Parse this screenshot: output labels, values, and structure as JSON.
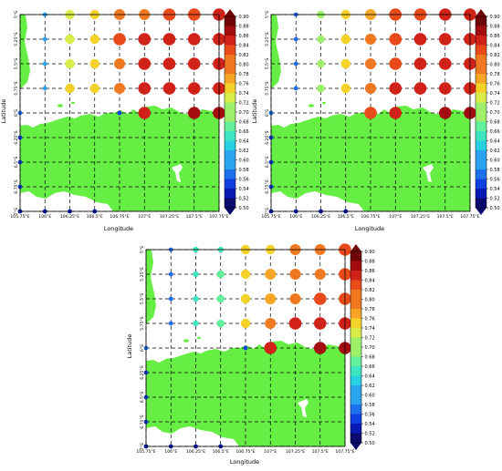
{
  "figure_colors": {
    "land": "#66ee44",
    "sea": "#ffffff",
    "grid_line": "#000000",
    "colormap": [
      "#0b0b6e",
      "#0a1ab5",
      "#1040e0",
      "#1f70ec",
      "#2aa4ee",
      "#28d0e2",
      "#3de6c0",
      "#63f09a",
      "#9ef06a",
      "#d8ec4a",
      "#f5d22a",
      "#f6a524",
      "#f07820",
      "#e84a1a",
      "#d02218",
      "#a30d10",
      "#6e0608"
    ]
  },
  "chart_data": [
    {
      "type": "scatter",
      "title": "",
      "xlabel": "Longitude",
      "ylabel": "Latitude",
      "x_ticks": [
        "105.75°E",
        "106°E",
        "106.25°E",
        "106.5°E",
        "106.75°E",
        "107°E",
        "107.25°E",
        "107.5°E",
        "107.75°E"
      ],
      "y_ticks": [
        "5°S",
        "5.25°S",
        "5.5°S",
        "5.75°S",
        "6°S",
        "6.25°S",
        "6.5°S",
        "6.75°S",
        "7°S"
      ],
      "xlim": [
        105.75,
        107.75
      ],
      "ylim": [
        -7.0,
        -5.0
      ],
      "colorbar_ticks": [
        "0.90",
        "0.88",
        "0.86",
        "0.84",
        "0.82",
        "0.80",
        "0.78",
        "0.76",
        "0.74",
        "0.72",
        "0.70",
        "0.68",
        "0.66",
        "0.64",
        "0.62",
        "0.60",
        "0.58",
        "0.56",
        "0.54",
        "0.52",
        "0.50"
      ],
      "colorbar_range": [
        0.5,
        0.9
      ],
      "points": [
        {
          "x": 106.0,
          "y": -5.0,
          "v": 0.6
        },
        {
          "x": 106.25,
          "y": -5.0,
          "v": 0.72
        },
        {
          "x": 106.5,
          "y": -5.0,
          "v": 0.76
        },
        {
          "x": 106.75,
          "y": -5.0,
          "v": 0.8
        },
        {
          "x": 107.0,
          "y": -5.0,
          "v": 0.8
        },
        {
          "x": 107.25,
          "y": -5.0,
          "v": 0.82
        },
        {
          "x": 107.5,
          "y": -5.0,
          "v": 0.82
        },
        {
          "x": 107.75,
          "y": -5.0,
          "v": 0.84
        },
        {
          "x": 106.0,
          "y": -5.25,
          "v": 0.6
        },
        {
          "x": 106.25,
          "y": -5.25,
          "v": 0.72
        },
        {
          "x": 106.5,
          "y": -5.25,
          "v": 0.76
        },
        {
          "x": 106.75,
          "y": -5.25,
          "v": 0.82
        },
        {
          "x": 107.0,
          "y": -5.25,
          "v": 0.84
        },
        {
          "x": 107.25,
          "y": -5.25,
          "v": 0.84
        },
        {
          "x": 107.5,
          "y": -5.25,
          "v": 0.86
        },
        {
          "x": 107.75,
          "y": -5.25,
          "v": 0.86
        },
        {
          "x": 106.0,
          "y": -5.5,
          "v": 0.6
        },
        {
          "x": 106.25,
          "y": -5.5,
          "v": 0.72
        },
        {
          "x": 106.5,
          "y": -5.5,
          "v": 0.76
        },
        {
          "x": 106.75,
          "y": -5.5,
          "v": 0.8
        },
        {
          "x": 107.0,
          "y": -5.5,
          "v": 0.84
        },
        {
          "x": 107.25,
          "y": -5.5,
          "v": 0.84
        },
        {
          "x": 107.5,
          "y": -5.5,
          "v": 0.86
        },
        {
          "x": 107.75,
          "y": -5.5,
          "v": 0.86
        },
        {
          "x": 106.0,
          "y": -5.75,
          "v": 0.6
        },
        {
          "x": 106.25,
          "y": -5.75,
          "v": 0.74
        },
        {
          "x": 106.5,
          "y": -5.75,
          "v": 0.76
        },
        {
          "x": 106.75,
          "y": -5.75,
          "v": 0.8
        },
        {
          "x": 107.0,
          "y": -5.75,
          "v": 0.84
        },
        {
          "x": 107.25,
          "y": -5.75,
          "v": 0.86
        },
        {
          "x": 107.5,
          "y": -5.75,
          "v": 0.86
        },
        {
          "x": 107.75,
          "y": -5.75,
          "v": 0.86
        },
        {
          "x": 105.75,
          "y": -6.0,
          "v": 0.58
        },
        {
          "x": 106.75,
          "y": -6.0,
          "v": 0.54
        },
        {
          "x": 107.0,
          "y": -6.0,
          "v": 0.86
        },
        {
          "x": 107.5,
          "y": -6.0,
          "v": 0.88
        },
        {
          "x": 107.75,
          "y": -6.0,
          "v": 0.88
        },
        {
          "x": 105.75,
          "y": -6.25,
          "v": 0.56
        },
        {
          "x": 105.75,
          "y": -6.5,
          "v": 0.56
        },
        {
          "x": 105.75,
          "y": -6.75,
          "v": 0.56
        },
        {
          "x": 105.75,
          "y": -7.0,
          "v": 0.52
        },
        {
          "x": 106.0,
          "y": -7.0,
          "v": 0.52
        },
        {
          "x": 106.25,
          "y": -7.0,
          "v": 0.52
        },
        {
          "x": 106.5,
          "y": -7.0,
          "v": 0.52
        }
      ]
    },
    {
      "type": "scatter",
      "title": "",
      "xlabel": "Longitude",
      "ylabel": "Latitude",
      "x_ticks": [
        "105.75°E",
        "106°E",
        "106.25°E",
        "106.5°E",
        "106.75°E",
        "107°E",
        "107.25°E",
        "107.5°E",
        "107.75°E"
      ],
      "y_ticks": [
        "5°S",
        "5.25°S",
        "5.5°S",
        "5.75°S",
        "6°S",
        "6.25°S",
        "6.5°S",
        "6.75°S",
        "7°S"
      ],
      "xlim": [
        105.75,
        107.75
      ],
      "ylim": [
        -7.0,
        -5.0
      ],
      "colorbar_ticks": [
        "0.90",
        "0.88",
        "0.86",
        "0.84",
        "0.82",
        "0.80",
        "0.78",
        "0.76",
        "0.74",
        "0.72",
        "0.70",
        "0.68",
        "0.66",
        "0.64",
        "0.62",
        "0.60",
        "0.58",
        "0.56",
        "0.54",
        "0.52",
        "0.50"
      ],
      "colorbar_range": [
        0.5,
        0.9
      ],
      "points": [
        {
          "x": 106.0,
          "y": -5.0,
          "v": 0.58
        },
        {
          "x": 106.25,
          "y": -5.0,
          "v": 0.7
        },
        {
          "x": 106.5,
          "y": -5.0,
          "v": 0.76
        },
        {
          "x": 106.75,
          "y": -5.0,
          "v": 0.78
        },
        {
          "x": 107.0,
          "y": -5.0,
          "v": 0.82
        },
        {
          "x": 107.25,
          "y": -5.0,
          "v": 0.82
        },
        {
          "x": 107.5,
          "y": -5.0,
          "v": 0.84
        },
        {
          "x": 107.75,
          "y": -5.0,
          "v": 0.84
        },
        {
          "x": 106.0,
          "y": -5.25,
          "v": 0.58
        },
        {
          "x": 106.25,
          "y": -5.25,
          "v": 0.7
        },
        {
          "x": 106.5,
          "y": -5.25,
          "v": 0.76
        },
        {
          "x": 106.75,
          "y": -5.25,
          "v": 0.8
        },
        {
          "x": 107.0,
          "y": -5.25,
          "v": 0.82
        },
        {
          "x": 107.25,
          "y": -5.25,
          "v": 0.84
        },
        {
          "x": 107.5,
          "y": -5.25,
          "v": 0.84
        },
        {
          "x": 107.75,
          "y": -5.25,
          "v": 0.86
        },
        {
          "x": 106.0,
          "y": -5.5,
          "v": 0.58
        },
        {
          "x": 106.25,
          "y": -5.5,
          "v": 0.7
        },
        {
          "x": 106.5,
          "y": -5.5,
          "v": 0.76
        },
        {
          "x": 106.75,
          "y": -5.5,
          "v": 0.8
        },
        {
          "x": 107.0,
          "y": -5.5,
          "v": 0.82
        },
        {
          "x": 107.25,
          "y": -5.5,
          "v": 0.84
        },
        {
          "x": 107.5,
          "y": -5.5,
          "v": 0.86
        },
        {
          "x": 107.75,
          "y": -5.5,
          "v": 0.86
        },
        {
          "x": 106.0,
          "y": -5.75,
          "v": 0.58
        },
        {
          "x": 106.25,
          "y": -5.75,
          "v": 0.7
        },
        {
          "x": 106.5,
          "y": -5.75,
          "v": 0.76
        },
        {
          "x": 106.75,
          "y": -5.75,
          "v": 0.8
        },
        {
          "x": 107.0,
          "y": -5.75,
          "v": 0.84
        },
        {
          "x": 107.25,
          "y": -5.75,
          "v": 0.86
        },
        {
          "x": 107.5,
          "y": -5.75,
          "v": 0.86
        },
        {
          "x": 107.75,
          "y": -5.75,
          "v": 0.86
        },
        {
          "x": 105.75,
          "y": -6.0,
          "v": 0.58
        },
        {
          "x": 106.75,
          "y": -6.0,
          "v": 0.82
        },
        {
          "x": 107.0,
          "y": -6.0,
          "v": 0.86
        },
        {
          "x": 107.5,
          "y": -6.0,
          "v": 0.88
        },
        {
          "x": 107.75,
          "y": -6.0,
          "v": 0.88
        },
        {
          "x": 105.75,
          "y": -6.25,
          "v": 0.56
        },
        {
          "x": 105.75,
          "y": -6.5,
          "v": 0.56
        },
        {
          "x": 105.75,
          "y": -6.75,
          "v": 0.56
        },
        {
          "x": 105.75,
          "y": -7.0,
          "v": 0.52
        },
        {
          "x": 106.0,
          "y": -7.0,
          "v": 0.52
        },
        {
          "x": 106.25,
          "y": -7.0,
          "v": 0.52
        },
        {
          "x": 106.5,
          "y": -7.0,
          "v": 0.52
        }
      ]
    },
    {
      "type": "scatter",
      "title": "",
      "xlabel": "Longitude",
      "ylabel": "Latitude",
      "x_ticks": [
        "105.75°E",
        "106°E",
        "106.25°E",
        "106.5°E",
        "106.75°E",
        "107°E",
        "107.25°E",
        "107.5°E",
        "107.75°E"
      ],
      "y_ticks": [
        "5°S",
        "5.25°S",
        "5.5°S",
        "5.75°S",
        "6°S",
        "6.25°S",
        "6.5°S",
        "6.75°S",
        "7°S"
      ],
      "xlim": [
        105.75,
        107.75
      ],
      "ylim": [
        -7.0,
        -5.0
      ],
      "colorbar_ticks": [
        "0.90",
        "0.88",
        "0.86",
        "0.84",
        "0.82",
        "0.80",
        "0.78",
        "0.76",
        "0.74",
        "0.72",
        "0.70",
        "0.68",
        "0.66",
        "0.64",
        "0.62",
        "0.60",
        "0.58",
        "0.56",
        "0.54",
        "0.52",
        "0.50"
      ],
      "colorbar_range": [
        0.5,
        0.9
      ],
      "points": [
        {
          "x": 106.0,
          "y": -5.0,
          "v": 0.58
        },
        {
          "x": 106.25,
          "y": -5.0,
          "v": 0.66
        },
        {
          "x": 106.5,
          "y": -5.0,
          "v": 0.66
        },
        {
          "x": 106.75,
          "y": -5.0,
          "v": 0.74
        },
        {
          "x": 107.0,
          "y": -5.0,
          "v": 0.76
        },
        {
          "x": 107.25,
          "y": -5.0,
          "v": 0.8
        },
        {
          "x": 107.5,
          "y": -5.0,
          "v": 0.8
        },
        {
          "x": 107.75,
          "y": -5.0,
          "v": 0.82
        },
        {
          "x": 106.0,
          "y": -5.25,
          "v": 0.58
        },
        {
          "x": 106.25,
          "y": -5.25,
          "v": 0.66
        },
        {
          "x": 106.5,
          "y": -5.25,
          "v": 0.68
        },
        {
          "x": 106.75,
          "y": -5.25,
          "v": 0.74
        },
        {
          "x": 107.0,
          "y": -5.25,
          "v": 0.78
        },
        {
          "x": 107.25,
          "y": -5.25,
          "v": 0.8
        },
        {
          "x": 107.5,
          "y": -5.25,
          "v": 0.8
        },
        {
          "x": 107.75,
          "y": -5.25,
          "v": 0.82
        },
        {
          "x": 106.0,
          "y": -5.5,
          "v": 0.58
        },
        {
          "x": 106.25,
          "y": -5.5,
          "v": 0.66
        },
        {
          "x": 106.5,
          "y": -5.5,
          "v": 0.68
        },
        {
          "x": 106.75,
          "y": -5.5,
          "v": 0.74
        },
        {
          "x": 107.0,
          "y": -5.5,
          "v": 0.78
        },
        {
          "x": 107.25,
          "y": -5.5,
          "v": 0.8
        },
        {
          "x": 107.5,
          "y": -5.5,
          "v": 0.82
        },
        {
          "x": 107.75,
          "y": -5.5,
          "v": 0.82
        },
        {
          "x": 106.0,
          "y": -5.75,
          "v": 0.58
        },
        {
          "x": 106.25,
          "y": -5.75,
          "v": 0.66
        },
        {
          "x": 106.5,
          "y": -5.75,
          "v": 0.68
        },
        {
          "x": 106.75,
          "y": -5.75,
          "v": 0.74
        },
        {
          "x": 107.0,
          "y": -5.75,
          "v": 0.8
        },
        {
          "x": 107.25,
          "y": -5.75,
          "v": 0.86
        },
        {
          "x": 107.5,
          "y": -5.75,
          "v": 0.86
        },
        {
          "x": 107.75,
          "y": -5.75,
          "v": 0.86
        },
        {
          "x": 105.75,
          "y": -6.0,
          "v": 0.58
        },
        {
          "x": 106.75,
          "y": -6.0,
          "v": 0.54
        },
        {
          "x": 107.0,
          "y": -6.0,
          "v": 0.86
        },
        {
          "x": 107.5,
          "y": -6.0,
          "v": 0.88
        },
        {
          "x": 107.75,
          "y": -6.0,
          "v": 0.88
        },
        {
          "x": 105.75,
          "y": -6.25,
          "v": 0.56
        },
        {
          "x": 105.75,
          "y": -6.5,
          "v": 0.56
        },
        {
          "x": 105.75,
          "y": -6.75,
          "v": 0.56
        },
        {
          "x": 105.75,
          "y": -7.0,
          "v": 0.52
        },
        {
          "x": 106.0,
          "y": -7.0,
          "v": 0.52
        },
        {
          "x": 106.25,
          "y": -7.0,
          "v": 0.52
        },
        {
          "x": 106.5,
          "y": -7.0,
          "v": 0.52
        }
      ]
    }
  ]
}
